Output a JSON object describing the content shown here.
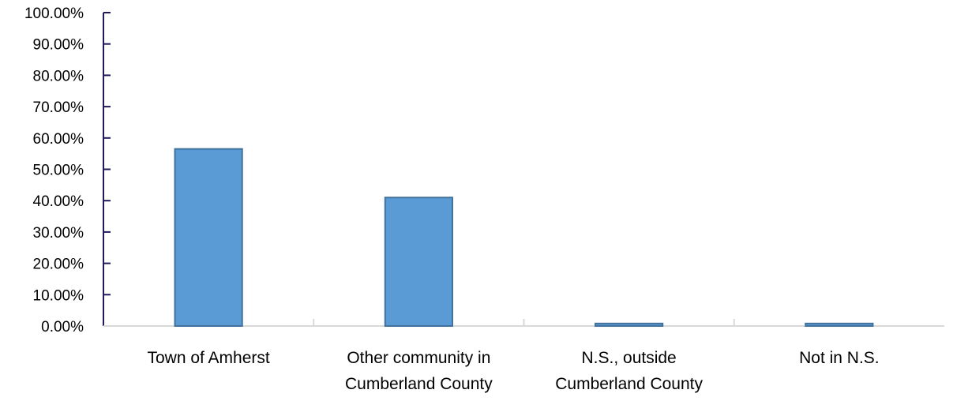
{
  "chart_data": {
    "type": "bar",
    "title": "",
    "xlabel": "",
    "ylabel": "",
    "categories": [
      [
        "Town of Amherst"
      ],
      [
        "Other community in",
        "Cumberland County"
      ],
      [
        "N.S., outside",
        "Cumberland County"
      ],
      [
        "Not in N.S."
      ]
    ],
    "values": [
      56.5,
      41.0,
      0.8,
      0.8
    ],
    "ylim": [
      0,
      100
    ],
    "yticks": [
      0,
      10,
      20,
      30,
      40,
      50,
      60,
      70,
      80,
      90,
      100
    ],
    "ytick_labels": [
      "0.00%",
      "10.00%",
      "20.00%",
      "30.00%",
      "40.00%",
      "50.00%",
      "60.00%",
      "70.00%",
      "80.00%",
      "90.00%",
      "100.00%"
    ],
    "grid": false,
    "legend": "none",
    "colors": {
      "bar_fill": "#5b9bd5",
      "bar_stroke": "#41719c",
      "axis_y": "#1f1a5c",
      "axis_x": "#d9d9d9"
    }
  }
}
